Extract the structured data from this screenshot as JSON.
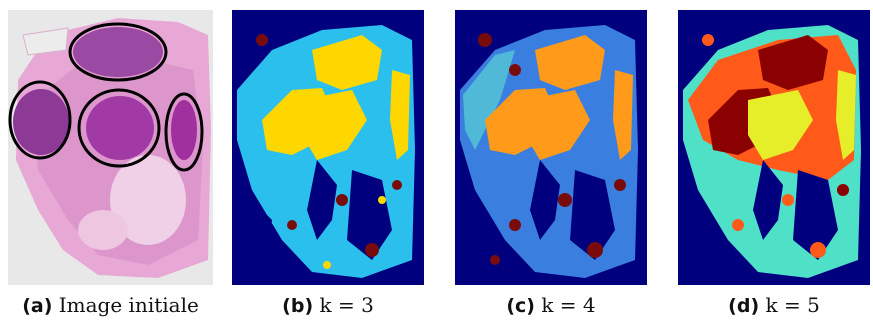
{
  "subfigures": [
    {
      "label": "(a)",
      "caption": "Image initiale"
    },
    {
      "label": "(b)",
      "caption": "k = 3"
    },
    {
      "label": "(c)",
      "caption": "k = 4"
    },
    {
      "label": "(d)",
      "caption": "k = 5"
    }
  ],
  "colors": {
    "background_dark_blue": "#00007f",
    "k3": [
      "#00007f",
      "#2bbfee",
      "#ffd700",
      "#7a0b0b"
    ],
    "k4": [
      "#00007f",
      "#3a7fe0",
      "#ff9a1a",
      "#7a0b0b",
      "#5fe0d0"
    ],
    "k5": [
      "#00007f",
      "#4fe0c8",
      "#8b0000",
      "#ff5a1a",
      "#e6ee2a"
    ],
    "histology_pink": "#d98cc8",
    "histology_dark": "#8a2a8a"
  }
}
